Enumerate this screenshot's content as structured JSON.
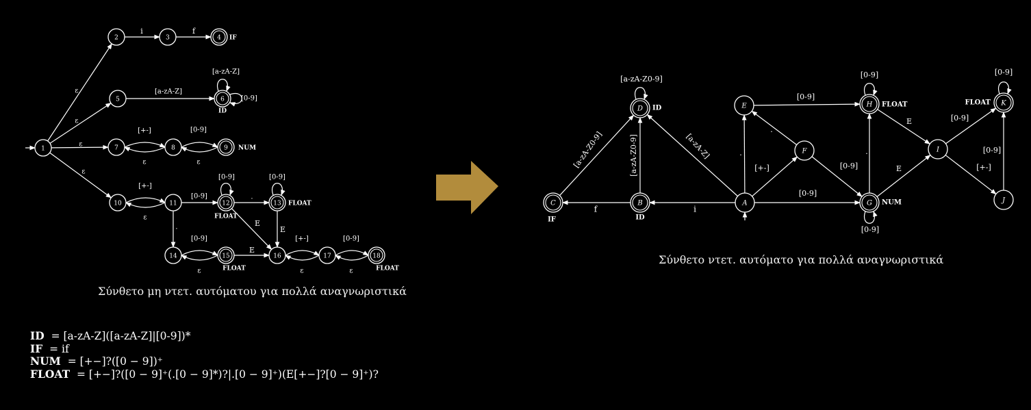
{
  "nfa": {
    "caption": "Σύνθετο μη ντετ. αυτόματου για πολλά αναγνωριστικά",
    "states": [
      {
        "id": "n1",
        "label": "1",
        "accepting": false,
        "tag": ""
      },
      {
        "id": "n2",
        "label": "2",
        "accepting": false,
        "tag": ""
      },
      {
        "id": "n3",
        "label": "3",
        "accepting": false,
        "tag": ""
      },
      {
        "id": "n4",
        "label": "4",
        "accepting": true,
        "tag": "IF"
      },
      {
        "id": "n5",
        "label": "5",
        "accepting": false,
        "tag": ""
      },
      {
        "id": "n6",
        "label": "6",
        "accepting": true,
        "tag": "ID"
      },
      {
        "id": "n7",
        "label": "7",
        "accepting": false,
        "tag": ""
      },
      {
        "id": "n8",
        "label": "8",
        "accepting": false,
        "tag": ""
      },
      {
        "id": "n9",
        "label": "9",
        "accepting": true,
        "tag": "NUM"
      },
      {
        "id": "n10",
        "label": "10",
        "accepting": false,
        "tag": ""
      },
      {
        "id": "n11",
        "label": "11",
        "accepting": false,
        "tag": ""
      },
      {
        "id": "n12",
        "label": "12",
        "accepting": true,
        "tag": "FLOAT"
      },
      {
        "id": "n13",
        "label": "13",
        "accepting": true,
        "tag": "FLOAT"
      },
      {
        "id": "n14",
        "label": "14",
        "accepting": false,
        "tag": ""
      },
      {
        "id": "n15",
        "label": "15",
        "accepting": true,
        "tag": "FLOAT"
      },
      {
        "id": "n16",
        "label": "16",
        "accepting": false,
        "tag": ""
      },
      {
        "id": "n17",
        "label": "17",
        "accepting": false,
        "tag": ""
      },
      {
        "id": "n18",
        "label": "18",
        "accepting": true,
        "tag": "FLOAT"
      }
    ],
    "edge_labels": {
      "eps": "ε",
      "i": "i",
      "f": "f",
      "alpha": "[a-zA-Z]",
      "digit": "[0-9]",
      "sign": "[+-]",
      "dot": ".",
      "E": "E"
    }
  },
  "arrow_color": "#b28c3c",
  "dfa": {
    "caption": "Σύνθετο ντετ. αυτόματο για πολλά αναγνωριστικά",
    "states": [
      {
        "id": "A",
        "label": "A",
        "accepting": false,
        "tag": ""
      },
      {
        "id": "B",
        "label": "B",
        "accepting": true,
        "tag": "ID"
      },
      {
        "id": "C",
        "label": "C",
        "accepting": true,
        "tag": "IF"
      },
      {
        "id": "D",
        "label": "D",
        "accepting": true,
        "tag": "ID"
      },
      {
        "id": "E",
        "label": "E",
        "accepting": false,
        "tag": ""
      },
      {
        "id": "F",
        "label": "F",
        "accepting": false,
        "tag": ""
      },
      {
        "id": "G",
        "label": "G",
        "accepting": true,
        "tag": "NUM"
      },
      {
        "id": "H",
        "label": "H",
        "accepting": true,
        "tag": "FLOAT"
      },
      {
        "id": "I",
        "label": "I",
        "accepting": false,
        "tag": ""
      },
      {
        "id": "J",
        "label": "J",
        "accepting": false,
        "tag": ""
      },
      {
        "id": "K",
        "label": "K",
        "accepting": true,
        "tag": "FLOAT"
      }
    ],
    "edge_labels": {
      "alnum": "[a-zA-Z0-9]",
      "alpha": "[a-zA-Z]",
      "digit": "[0-9]",
      "sign": "[+-]",
      "i": "i",
      "f": "f",
      "E": "E",
      "dot": "."
    }
  },
  "definitions": {
    "id_name": "ID",
    "id_expr": "= [a-zA-Z]([a-zA-Z]|[0-9])*",
    "if_name": "IF",
    "if_expr": "= if",
    "num_name": "NUM",
    "num_expr": "= [+−]?([0 − 9])⁺",
    "float_name": "FLOAT",
    "float_expr": "= [+−]?([0 − 9]⁺(.[0 − 9]*)?|.[0 − 9]⁺)(E[+−]?[0 − 9]⁺)?"
  }
}
